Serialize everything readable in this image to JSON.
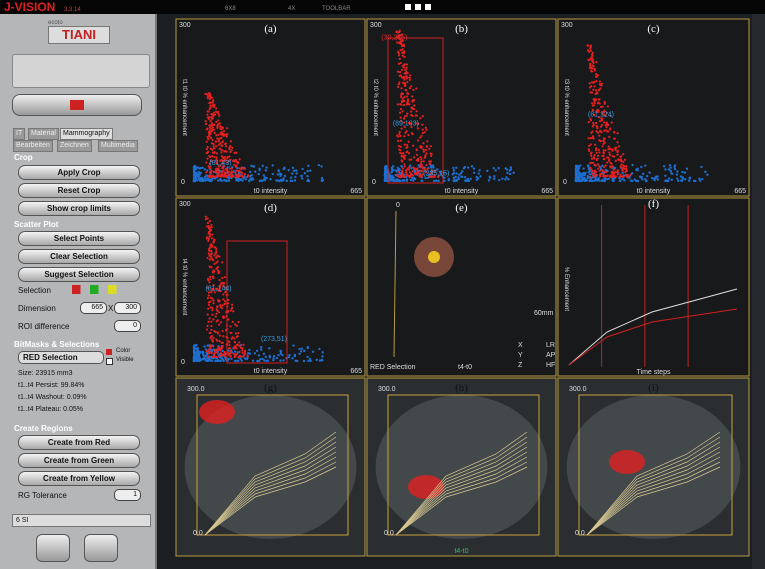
{
  "top_bar": {
    "app_name": "J-VISION",
    "version": "3.3.14",
    "layout_grid": "6X8",
    "layout_zoom": "4X",
    "toolbar": "TOOLBAR"
  },
  "left_panel": {
    "logo_small": "ecoto",
    "logo": "TIANI",
    "tabs": [
      "IT",
      "Material",
      "Mammography",
      "Bearbeiten",
      "Zeichnen",
      "Multimedia"
    ],
    "crop": {
      "title": "Crop",
      "buttons": [
        "Apply Crop",
        "Reset Crop",
        "Show crop limits"
      ]
    },
    "scatter": {
      "title": "Scatter Plot",
      "buttons": [
        "Select Points",
        "Clear Selection",
        "Suggest Selection"
      ],
      "selection_label": "Selection",
      "dimension_label": "Dimension",
      "dimension_x": "665",
      "times": "X",
      "dimension_y": "300",
      "roi_label": "ROI difference",
      "roi_value": "0"
    },
    "bitmasks": {
      "title": "BitMasks & Selections",
      "selection": "RED Selection",
      "color_label": "Color",
      "visible_label": "Visible",
      "stats": [
        "Size: 23915 mm3",
        "t1..t4 Persist: 99.84%",
        "t1..t4 Washout: 0.09%",
        "t1..t4 Plateau: 0.05%"
      ]
    },
    "regions": {
      "title": "Create Regions",
      "buttons": [
        "Create from Red",
        "Create from Green",
        "Create from Yellow"
      ],
      "tolerance_label": "RG Tolerance",
      "tolerance_value": "1"
    },
    "status": "6 SI"
  },
  "panels": [
    {
      "letter": "(a)",
      "y_max": "300",
      "y_min": "0",
      "x_max": "665",
      "x_label": "t0 intensity",
      "y_label": "t1 t0 % enhancement",
      "points": [
        "(81,43)"
      ]
    },
    {
      "letter": "(b)",
      "y_max": "300",
      "y_min": "0",
      "x_max": "665",
      "x_label": "t0 intensity",
      "y_label": "t2 t0 % enhancement",
      "points": [
        "(30,276)",
        "(89,103)",
        "(235,15)"
      ]
    },
    {
      "letter": "(c)",
      "y_max": "300",
      "y_min": "0",
      "x_max": "665",
      "x_label": "t0 intensity",
      "y_label": "t3 t0 % enhancement",
      "points": [
        "(81,124)"
      ]
    },
    {
      "letter": "(d)",
      "y_max": "300",
      "y_min": "0",
      "x_max": "665",
      "x_label": "t0 intensity",
      "y_label": "t4 t0 % enhancement",
      "points": [
        "(81,144)",
        "(273,51)"
      ]
    },
    {
      "letter": "(e)",
      "zero": "0",
      "selection": "RED Selection",
      "series": "t4-t0",
      "scale": "60mm",
      "axes": [
        [
          "X",
          "LR"
        ],
        [
          "Y",
          "AP"
        ],
        [
          "Z",
          "HF"
        ]
      ]
    },
    {
      "letter": "(f)",
      "y_label": "% Enhancement",
      "x_label": "Time steps"
    },
    {
      "letter": "(g)",
      "y_max": "300.0",
      "y_min": "0.0"
    },
    {
      "letter": "(h)",
      "y_max": "300.0",
      "y_min": "0.0",
      "series": "t4-t0"
    },
    {
      "letter": "(i)",
      "y_max": "300.0",
      "y_min": "0.0"
    }
  ]
}
